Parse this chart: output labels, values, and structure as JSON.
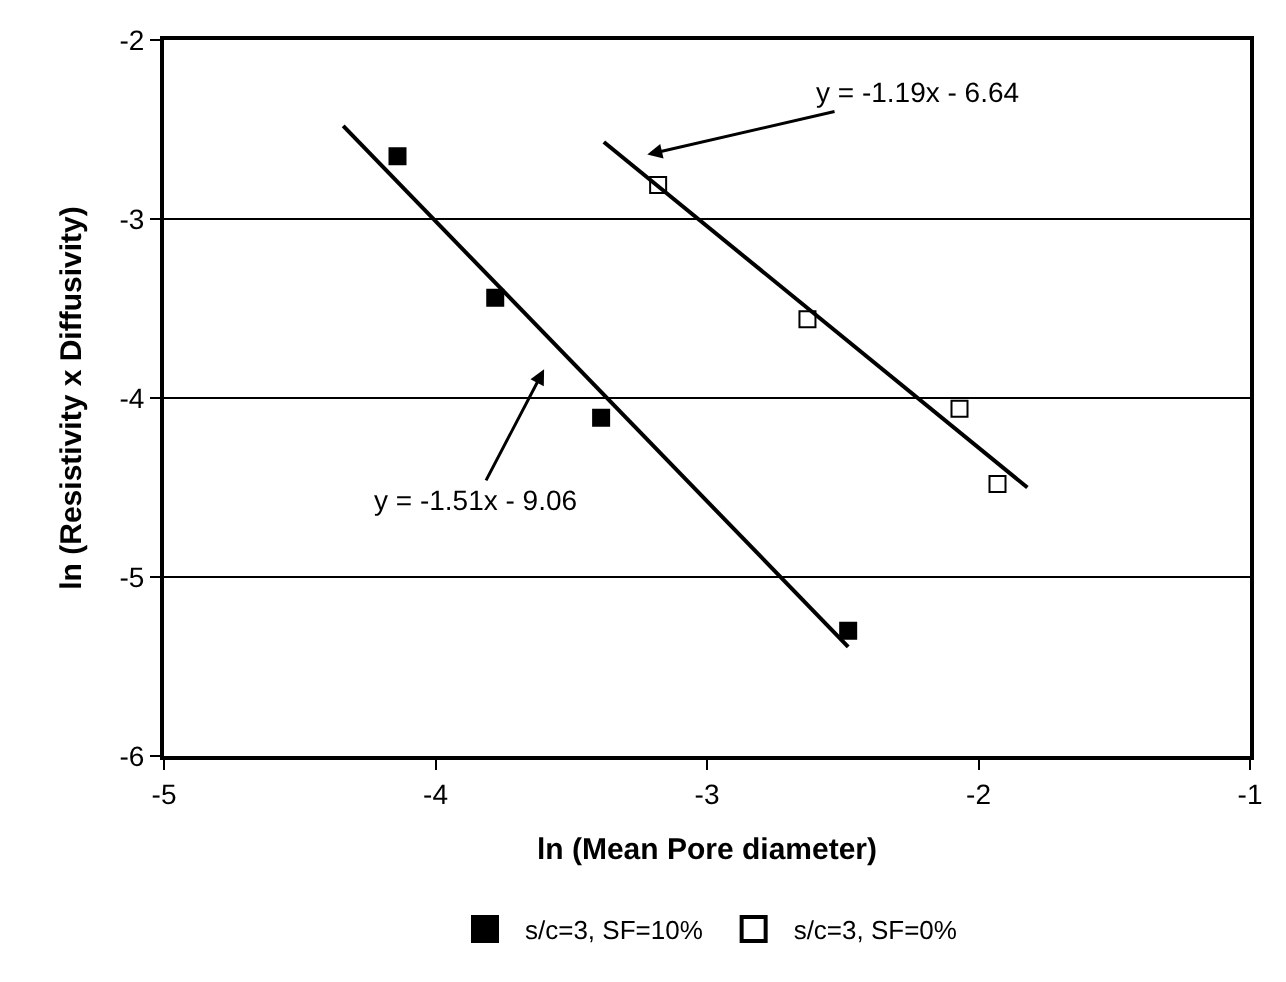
{
  "chart_data": {
    "type": "scatter",
    "xlabel": "ln (Mean Pore diameter)",
    "ylabel": "ln (Resistivity x Diffusivity)",
    "series": [
      {
        "name": "s/c=3, SF=10%",
        "color": "#000000",
        "marker": "square",
        "x": [
          -4.14,
          -3.78,
          -3.39,
          -2.48
        ],
        "values": [
          -2.65,
          -3.44,
          -4.11,
          -5.3
        ]
      },
      {
        "name": "s/c=3, SF=0%",
        "color": "#000000",
        "marker": "square-open",
        "x": [
          -3.18,
          -2.63,
          -2.07,
          -1.93
        ],
        "values": [
          -2.81,
          -3.56,
          -4.06,
          -4.48
        ]
      },
      {
        "type": "line",
        "color": "#000000",
        "marker": "none",
        "x": [
          -4.34,
          -2.48
        ],
        "values": [
          -2.48,
          -5.39
        ]
      },
      {
        "type": "line",
        "color": "#000000",
        "marker": "none",
        "x": [
          -3.38,
          -1.82
        ],
        "values": [
          -2.57,
          -4.5
        ]
      }
    ],
    "annotations": [
      "y = -1.19x - 6.64",
      "y = -1.51x - 9.06"
    ],
    "xlim": [
      -5,
      -1
    ],
    "xticks": [
      -5,
      -4,
      -3,
      -2,
      -1
    ],
    "ylim": [
      -6,
      -2
    ],
    "yticks": [
      -6,
      -5,
      -4,
      -3,
      -2
    ],
    "grid": "y",
    "legend": "bottom"
  }
}
